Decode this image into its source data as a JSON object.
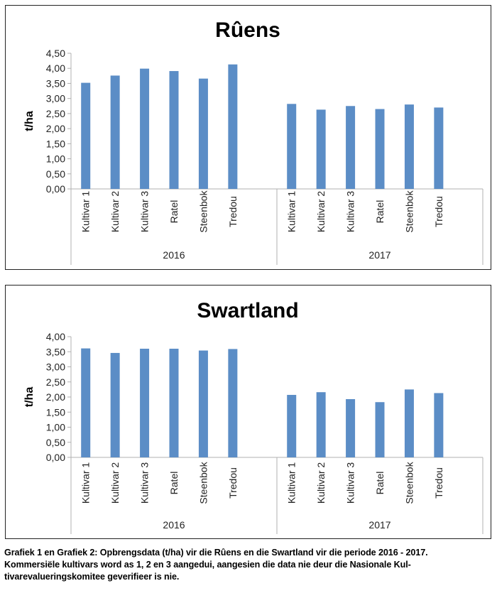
{
  "chart_data": [
    {
      "type": "bar",
      "title": "Rûens",
      "ylabel": "t/ha",
      "xlabel": "",
      "ylim": [
        0,
        4.5
      ],
      "yticks": [
        "0,00",
        "0,50",
        "1,00",
        "1,50",
        "2,00",
        "2,50",
        "3,00",
        "3,50",
        "4,00",
        "4,50"
      ],
      "groups": [
        "2016",
        "2017"
      ],
      "categories": [
        "Kultivar 1",
        "Kultivar 2",
        "Kultivar 3",
        "Ratel",
        "Steenbok",
        "Tredou"
      ],
      "series": [
        {
          "group": "2016",
          "values": [
            3.52,
            3.76,
            3.99,
            3.91,
            3.66,
            4.13
          ]
        },
        {
          "group": "2017",
          "values": [
            2.82,
            2.63,
            2.75,
            2.65,
            2.8,
            2.7
          ]
        }
      ],
      "grid": false,
      "bar_color": "#5b8dc6"
    },
    {
      "type": "bar",
      "title": "Swartland",
      "ylabel": "t/ha",
      "xlabel": "",
      "ylim": [
        0,
        4.0
      ],
      "yticks": [
        "0,00",
        "0,50",
        "1,00",
        "1,50",
        "2,00",
        "2,50",
        "3,00",
        "3,50",
        "4,00"
      ],
      "groups": [
        "2016",
        "2017"
      ],
      "categories": [
        "Kultivar 1",
        "Kultivar 2",
        "Kultivar 3",
        "Ratel",
        "Steenbok",
        "Tredou"
      ],
      "series": [
        {
          "group": "2016",
          "values": [
            3.61,
            3.46,
            3.6,
            3.6,
            3.54,
            3.59
          ]
        },
        {
          "group": "2017",
          "values": [
            2.07,
            2.16,
            1.93,
            1.83,
            2.25,
            2.13
          ]
        }
      ],
      "grid": false,
      "bar_color": "#5b8dc6"
    }
  ],
  "caption": {
    "line1": "Grafiek 1 en Grafiek 2: Opbrengsdata (t/ha) vir die Rûens en die Swartland vir die periode 2016 - 2017.",
    "line2": "Kommersiële kultivars word as 1, 2 en 3 aangedui, aangesien die data nie deur die Nasionale Kul-",
    "line3": "tivarevalueringskomitee geverifieer is nie."
  }
}
